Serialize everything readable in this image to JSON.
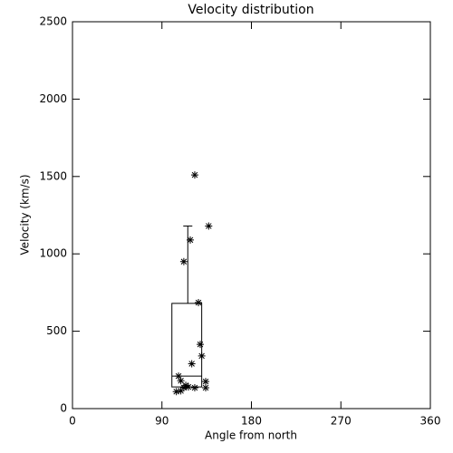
{
  "chart_data": {
    "type": "scatter",
    "title": "Velocity distribution",
    "x_label": "Angle from north",
    "y_label": "Velocity (km/s)",
    "x": [
      123,
      137,
      118.5,
      112,
      126.7,
      128.5,
      130,
      120,
      106.7,
      109,
      134,
      114,
      116.6,
      134,
      123,
      112,
      109,
      104.5
    ],
    "values": [
      1510,
      1180,
      1090,
      950,
      685,
      415,
      340,
      290,
      210,
      180,
      175,
      150,
      140,
      135,
      135,
      135,
      115,
      110
    ],
    "color": "#000000",
    "box": {
      "x": 115,
      "width": 30,
      "q1": 140,
      "median": 210,
      "q3": 680,
      "whisker_x": 116,
      "whisker_high": 1180
    },
    "xlim": [
      0,
      360
    ],
    "xticks": [
      0,
      90,
      180,
      270,
      360
    ],
    "ylim": [
      0,
      2500
    ],
    "yticks": [
      0,
      500,
      1000,
      1500,
      2000,
      2500
    ]
  }
}
